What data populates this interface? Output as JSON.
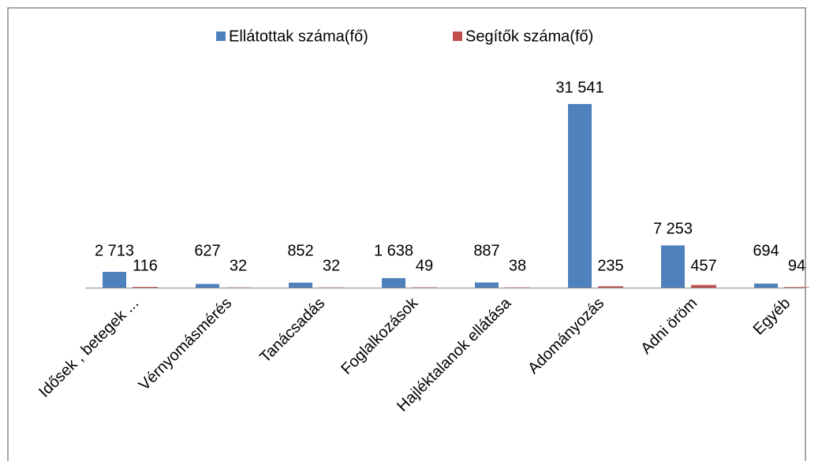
{
  "chart_data": {
    "type": "bar",
    "categories": [
      "Idősek , betegek ...",
      "Vérnyomásmérés",
      "Tanácsadás",
      "Foglalkozások",
      "Hajléktalanok ellátása",
      "Adományozás",
      "Adni öröm",
      "Egyéb"
    ],
    "series": [
      {
        "name": "Ellátottak száma(fő)",
        "color": "#4f81bd",
        "values": [
          2713,
          627,
          852,
          1638,
          887,
          31541,
          7253,
          694
        ],
        "value_labels": [
          "2 713",
          "627",
          "852",
          "1 638",
          "887",
          "31 541",
          "7 253",
          "694"
        ]
      },
      {
        "name": "Segítők száma(fő)",
        "color": "#c0504d",
        "values": [
          116,
          32,
          32,
          49,
          38,
          235,
          457,
          94
        ]
      }
    ],
    "legend": "top"
  }
}
